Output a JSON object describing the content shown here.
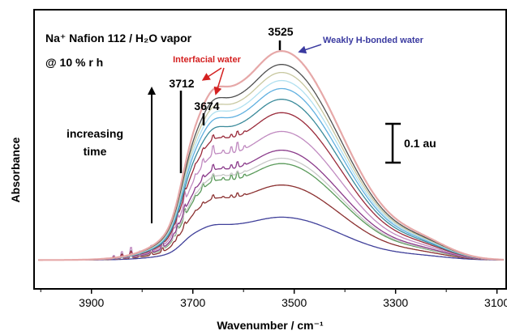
{
  "chart_data": {
    "type": "line",
    "title": "Na⁺ Nafion 112 / H₂O vapor",
    "subtitle": "@ 10 % r h",
    "xlabel": "Wavenumber / cm⁻¹",
    "ylabel": "Absorbance",
    "xlim": [
      4010,
      3085
    ],
    "x_reversed": true,
    "ylim": [
      0,
      0.9
    ],
    "x_ticks": [
      3900,
      3700,
      3500,
      3300,
      3100
    ],
    "grid": false,
    "peak_positions": [
      3712,
      3674,
      3525
    ],
    "series_count": 13,
    "series_peak_absorbance": [
      0.16,
      0.28,
      0.36,
      0.38,
      0.41,
      0.48,
      0.55,
      0.6,
      0.64,
      0.67,
      0.7,
      0.73,
      0.78
    ],
    "series_colors": [
      "#40409a",
      "#8b3030",
      "#5a9a5a",
      "#c8c8c8",
      "#8a3a8a",
      "#c08ac0",
      "#9a2a3a",
      "#3a8a9a",
      "#60b0e0",
      "#b0e0f0",
      "#c8c8a0",
      "#505050",
      "#e6a8a8"
    ],
    "scale_bar": {
      "label": "0.1 au",
      "value": 0.1
    }
  },
  "annotations": {
    "increasing_time_1": "increasing",
    "increasing_time_2": "time",
    "interfacial_water": "Interfacial water",
    "weakly_bonded": "Weakly H-bonded water",
    "peak_3712": "3712",
    "peak_3674": "3674",
    "peak_3525": "3525",
    "interfacial_color": "#d42020",
    "weakly_color": "#3a3aa0"
  },
  "x_tick_labels": [
    "3900",
    "3700",
    "3500",
    "3300",
    "3100"
  ]
}
